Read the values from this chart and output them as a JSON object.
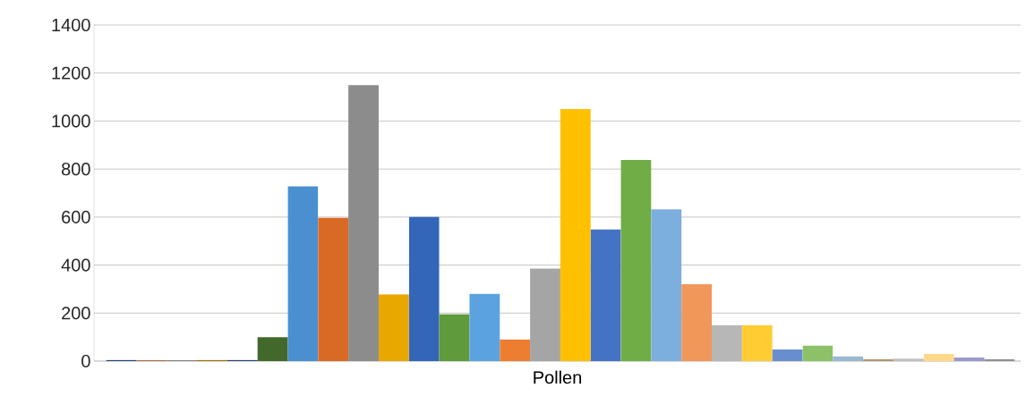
{
  "chart_data": {
    "type": "bar",
    "xlabel": "Pollen",
    "categories": [
      null,
      null,
      null,
      null,
      null,
      null,
      null,
      null,
      null,
      null,
      null,
      null,
      null,
      null,
      null,
      null,
      null,
      null,
      null,
      null,
      null,
      null,
      null,
      null,
      null,
      null,
      null,
      null,
      null,
      null
    ],
    "values": [
      5,
      3,
      3,
      5,
      5,
      100,
      728,
      597,
      1150,
      278,
      600,
      195,
      280,
      90,
      385,
      1050,
      548,
      838,
      632,
      320,
      150,
      150,
      48,
      65,
      20,
      8,
      10,
      30,
      15,
      8
    ],
    "colors": [
      "#264478",
      "#9e480e",
      "#636363",
      "#997300",
      "#264478",
      "#43682b",
      "#4a8fd0",
      "#d96a25",
      "#8c8c8c",
      "#e8a800",
      "#3366b8",
      "#5f9a3c",
      "#5ba3e0",
      "#ed7d31",
      "#a5a5a5",
      "#ffc000",
      "#4472c4",
      "#70ad47",
      "#7cafdd",
      "#f1975a",
      "#b7b7b7",
      "#ffcd33",
      "#698ed0",
      "#8cc168",
      "#9bb8d0",
      "#b09870",
      "#c0c0c0",
      "#ffd88a",
      "#9a9ac8",
      "#909090"
    ],
    "ylim": [
      0,
      1400
    ],
    "yticks": [
      0,
      200,
      400,
      600,
      800,
      1000,
      1200,
      1400
    ],
    "grid": "y"
  }
}
